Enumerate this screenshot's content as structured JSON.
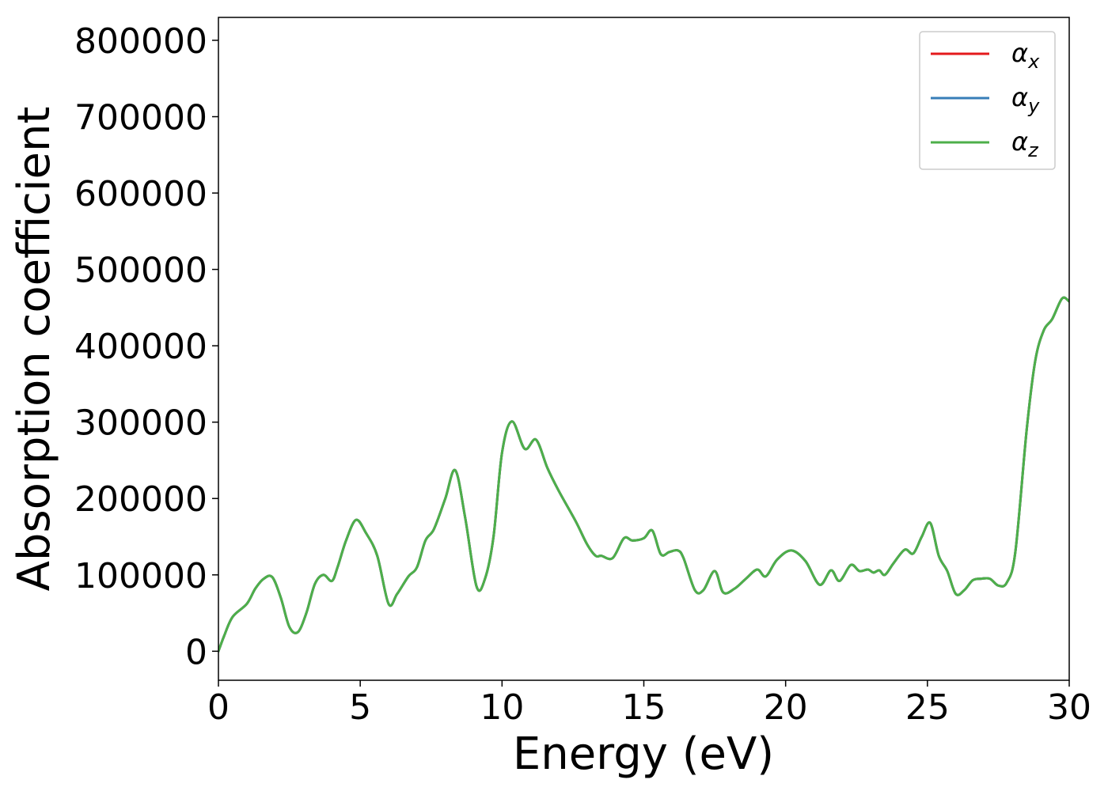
{
  "chart_data": {
    "type": "line",
    "title": "",
    "xlabel": "Energy (eV)",
    "ylabel": "Absorption coefficient",
    "xlim": [
      0,
      30
    ],
    "ylim": [
      -38000,
      830000
    ],
    "xticks": [
      0,
      5,
      10,
      15,
      20,
      25,
      30
    ],
    "yticks": [
      0,
      100000,
      200000,
      300000,
      400000,
      500000,
      600000,
      700000,
      800000
    ],
    "grid": false,
    "legend_position": "top-right",
    "legend": [
      {
        "base": "α",
        "sub": "x",
        "color": "#e41a1c"
      },
      {
        "base": "α",
        "sub": "y",
        "color": "#377eb8"
      },
      {
        "base": "α",
        "sub": "z",
        "color": "#4daf4a"
      }
    ],
    "x": [
      0,
      0.2,
      0.5,
      1,
      1.3,
      1.6,
      1.9,
      2.2,
      2.5,
      2.8,
      3.1,
      3.4,
      3.7,
      4.0,
      4.2,
      4.5,
      4.85,
      5.2,
      5.6,
      6.0,
      6.3,
      6.7,
      7.0,
      7.3,
      7.6,
      8.0,
      8.35,
      8.7,
      9.1,
      9.4,
      9.7,
      10.0,
      10.35,
      10.8,
      11.2,
      11.6,
      12.0,
      12.6,
      13.0,
      13.3,
      13.5,
      13.9,
      14.3,
      14.6,
      15.0,
      15.3,
      15.6,
      15.9,
      16.2,
      16.4,
      16.8,
      17.1,
      17.5,
      17.8,
      18.2,
      18.6,
      19.0,
      19.3,
      19.7,
      20.2,
      20.7,
      21.2,
      21.6,
      21.9,
      22.3,
      22.6,
      22.9,
      23.1,
      23.3,
      23.5,
      23.8,
      24.2,
      24.5,
      24.8,
      25.1,
      25.4,
      25.7,
      26.0,
      26.3,
      26.6,
      26.9,
      27.2,
      27.5,
      27.8,
      28.1,
      28.5,
      28.8,
      29.1,
      29.4,
      29.75,
      30
    ],
    "series": [
      {
        "name": "α_x",
        "color": "#e41a1c",
        "values": [
          0,
          20000,
          45000,
          62000,
          82000,
          95000,
          97000,
          70000,
          32000,
          25000,
          50000,
          88000,
          100000,
          92000,
          110000,
          145000,
          172000,
          155000,
          125000,
          62000,
          75000,
          98000,
          110000,
          145000,
          160000,
          200000,
          237000,
          175000,
          85000,
          95000,
          150000,
          260000,
          301000,
          265000,
          277000,
          240000,
          210000,
          170000,
          140000,
          125000,
          125000,
          122000,
          148000,
          145000,
          148000,
          158000,
          127000,
          130000,
          132000,
          122000,
          80000,
          80000,
          105000,
          77000,
          82000,
          95000,
          107000,
          98000,
          120000,
          132000,
          118000,
          87000,
          106000,
          92000,
          113000,
          105000,
          107000,
          103000,
          106000,
          100000,
          115000,
          133000,
          128000,
          150000,
          168000,
          125000,
          105000,
          75000,
          80000,
          93000,
          95000,
          95000,
          86000,
          90000,
          130000,
          290000,
          380000,
          420000,
          435000,
          462000,
          458000
        ]
      },
      {
        "name": "α_y",
        "color": "#377eb8",
        "values": [
          0,
          20000,
          45000,
          62000,
          82000,
          95000,
          97000,
          70000,
          32000,
          25000,
          50000,
          88000,
          100000,
          92000,
          110000,
          145000,
          172000,
          155000,
          125000,
          62000,
          75000,
          98000,
          110000,
          145000,
          160000,
          200000,
          237000,
          175000,
          85000,
          95000,
          150000,
          260000,
          301000,
          265000,
          277000,
          240000,
          210000,
          170000,
          140000,
          125000,
          125000,
          122000,
          148000,
          145000,
          148000,
          158000,
          127000,
          130000,
          132000,
          122000,
          80000,
          80000,
          105000,
          77000,
          82000,
          95000,
          107000,
          98000,
          120000,
          132000,
          118000,
          87000,
          106000,
          92000,
          113000,
          105000,
          107000,
          103000,
          106000,
          100000,
          115000,
          133000,
          128000,
          150000,
          168000,
          125000,
          105000,
          75000,
          80000,
          93000,
          95000,
          95000,
          86000,
          90000,
          130000,
          290000,
          380000,
          420000,
          435000,
          462000,
          458000
        ]
      },
      {
        "name": "α_z",
        "color": "#4daf4a",
        "values": [
          0,
          20000,
          45000,
          62000,
          82000,
          95000,
          97000,
          70000,
          32000,
          25000,
          50000,
          88000,
          100000,
          92000,
          110000,
          145000,
          172000,
          155000,
          125000,
          62000,
          75000,
          98000,
          110000,
          145000,
          160000,
          200000,
          237000,
          175000,
          85000,
          95000,
          150000,
          260000,
          301000,
          265000,
          277000,
          240000,
          210000,
          170000,
          140000,
          125000,
          125000,
          122000,
          148000,
          145000,
          148000,
          158000,
          127000,
          130000,
          132000,
          122000,
          80000,
          80000,
          105000,
          77000,
          82000,
          95000,
          107000,
          98000,
          120000,
          132000,
          118000,
          87000,
          106000,
          92000,
          113000,
          105000,
          107000,
          103000,
          106000,
          100000,
          115000,
          133000,
          128000,
          150000,
          168000,
          125000,
          105000,
          75000,
          80000,
          93000,
          95000,
          95000,
          86000,
          90000,
          130000,
          290000,
          380000,
          420000,
          435000,
          462000,
          458000
        ]
      }
    ]
  }
}
